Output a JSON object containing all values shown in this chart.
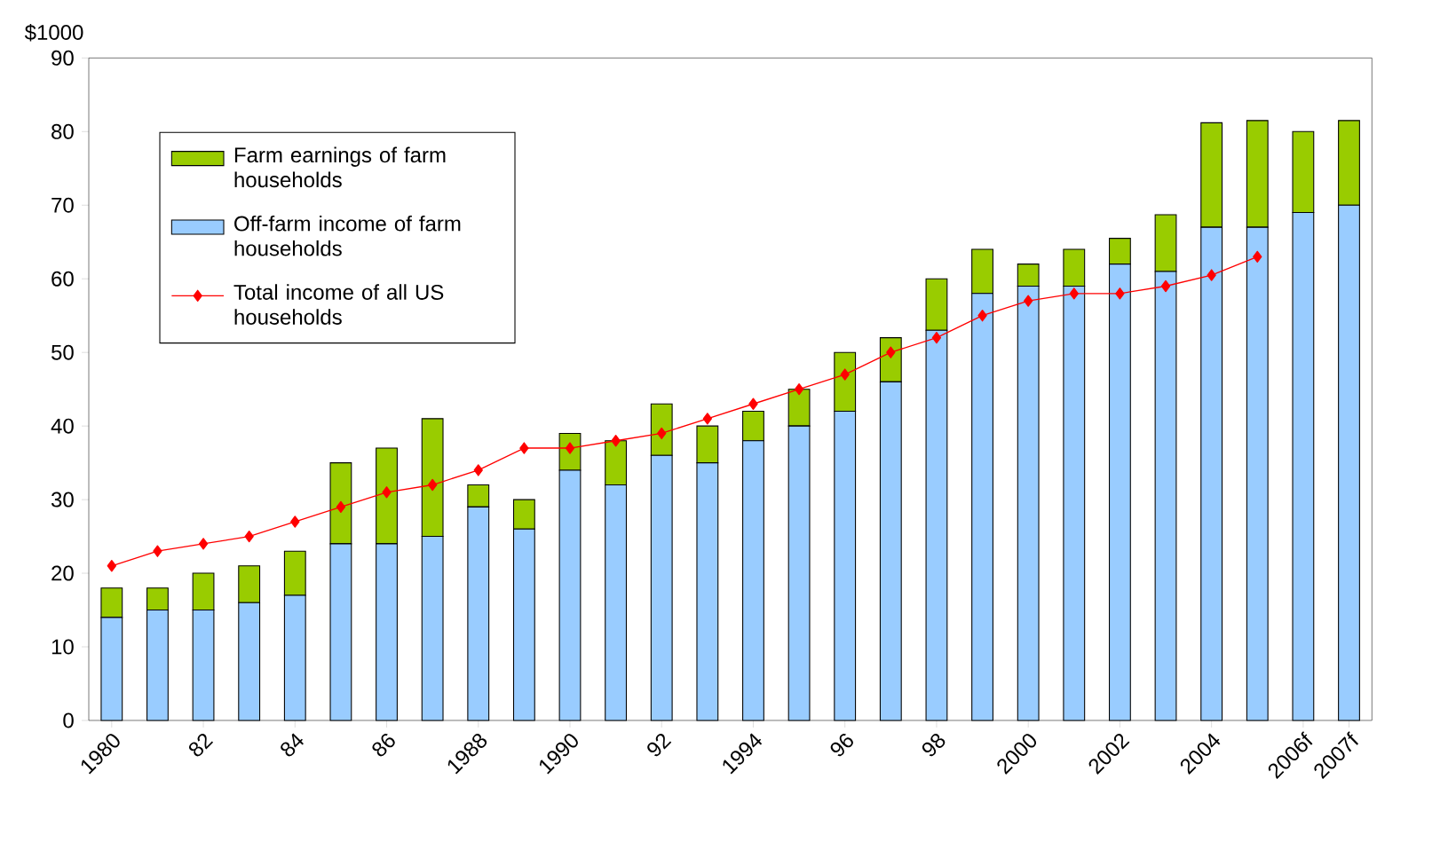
{
  "chart_data": {
    "type": "bar",
    "stacked": true,
    "ylabel": "$1000",
    "categories": [
      "1980",
      null,
      "82",
      null,
      "84",
      null,
      "86",
      null,
      "1988",
      null,
      "1990",
      null,
      "92",
      null,
      "1994",
      null,
      "96",
      null,
      "98",
      null,
      "2000",
      null,
      "2002",
      null,
      "2004",
      null,
      "2006f",
      "2007f"
    ],
    "series": [
      {
        "name": "Off-farm income of farm households",
        "color": "#99ccff",
        "values": [
          14,
          15,
          15,
          16,
          17,
          24,
          24,
          25,
          29,
          26,
          34,
          32,
          36,
          35,
          38,
          40,
          42,
          46,
          53,
          58,
          59,
          59,
          62,
          61,
          67,
          67,
          69,
          70
        ]
      },
      {
        "name": "Farm earnings of farm households",
        "color": "#99cc00",
        "values": [
          4,
          3,
          5,
          5,
          6,
          11,
          13,
          16,
          3,
          4,
          5,
          6,
          7,
          5,
          4,
          5,
          8,
          6,
          7,
          6,
          3,
          5,
          3.5,
          7.7,
          14.2,
          14.5,
          11,
          11.5
        ]
      },
      {
        "name": "Total income of all US households",
        "type": "line",
        "color": "#ff0000",
        "marker": "diamond",
        "values": [
          21,
          23,
          24,
          25,
          27,
          29,
          31,
          32,
          34,
          37,
          37,
          38,
          39,
          41,
          43,
          45,
          47,
          50,
          52,
          55,
          57,
          58,
          58,
          59,
          60.5,
          63,
          null,
          null
        ]
      }
    ],
    "ylim": [
      0,
      90
    ],
    "yticks": [
      0,
      10,
      20,
      30,
      40,
      50,
      60,
      70,
      80,
      90
    ],
    "grid": false,
    "legend": "top left"
  }
}
